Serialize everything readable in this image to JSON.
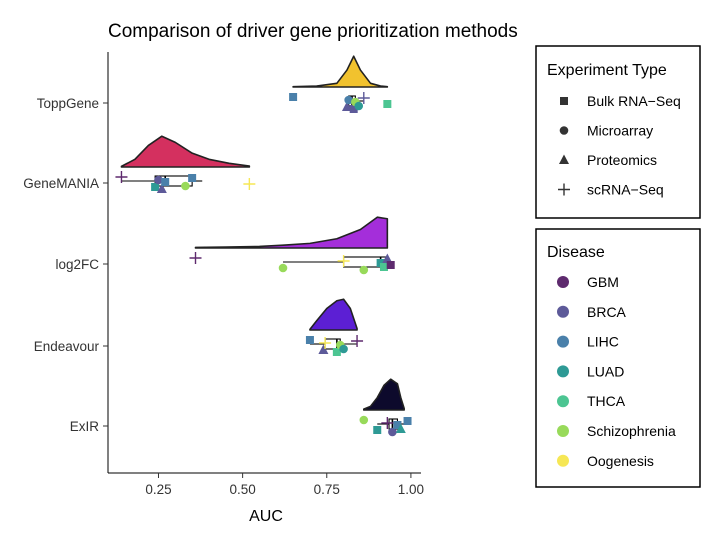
{
  "chart_data": {
    "type": "raincloud",
    "title": "Comparison of driver gene prioritization methods",
    "xlabel": "AUC",
    "ylabel": "",
    "xlim": [
      0.1,
      1.03
    ],
    "x_ticks": [
      0.25,
      0.5,
      0.75,
      1.0
    ],
    "x_tick_labels": [
      "0.25",
      "0.50",
      "0.75",
      "1.00"
    ],
    "grid": false,
    "legend_position": "right",
    "categories": [
      "ToppGene",
      "GeneMANIA",
      "log2FC",
      "Endeavour",
      "ExIR"
    ],
    "methods": [
      {
        "name": "ToppGene",
        "fill": "#F1C22E",
        "density": [
          [
            0.65,
            0.01
          ],
          [
            0.72,
            0.03
          ],
          [
            0.78,
            0.12
          ],
          [
            0.81,
            0.55
          ],
          [
            0.83,
            1.0
          ],
          [
            0.85,
            0.55
          ],
          [
            0.88,
            0.12
          ],
          [
            0.91,
            0.03
          ],
          [
            0.93,
            0.01
          ]
        ],
        "box": {
          "min": 0.81,
          "q1": 0.815,
          "median": 0.825,
          "q3": 0.835,
          "max": 0.86
        },
        "points": [
          {
            "x": 0.65,
            "disease": "LIHC",
            "exp": "Bulk RNA-Seq"
          },
          {
            "x": 0.81,
            "disease": "BRCA",
            "exp": "Proteomics"
          },
          {
            "x": 0.815,
            "disease": "LIHC",
            "exp": "Microarray"
          },
          {
            "x": 0.83,
            "disease": "BRCA",
            "exp": "Bulk RNA-Seq"
          },
          {
            "x": 0.835,
            "disease": "Schizophrenia",
            "exp": "Microarray"
          },
          {
            "x": 0.845,
            "disease": "LUAD",
            "exp": "Microarray"
          },
          {
            "x": 0.86,
            "disease": "BRCA",
            "exp": "scRNA-Seq"
          },
          {
            "x": 0.93,
            "disease": "THCA",
            "exp": "Bulk RNA-Seq"
          }
        ]
      },
      {
        "name": "GeneMANIA",
        "fill": "#D4305F",
        "density": [
          [
            0.14,
            0.02
          ],
          [
            0.18,
            0.25
          ],
          [
            0.22,
            0.7
          ],
          [
            0.26,
            1.0
          ],
          [
            0.3,
            0.8
          ],
          [
            0.35,
            0.45
          ],
          [
            0.4,
            0.25
          ],
          [
            0.46,
            0.12
          ],
          [
            0.52,
            0.03
          ]
        ],
        "box": {
          "min": 0.14,
          "q1": 0.24,
          "median": 0.27,
          "q3": 0.35,
          "max": 0.38
        },
        "points": [
          {
            "x": 0.14,
            "disease": "GBM",
            "exp": "scRNA-Seq"
          },
          {
            "x": 0.24,
            "disease": "LUAD",
            "exp": "Bulk RNA-Seq"
          },
          {
            "x": 0.25,
            "disease": "BRCA",
            "exp": "Microarray"
          },
          {
            "x": 0.26,
            "disease": "BRCA",
            "exp": "Proteomics"
          },
          {
            "x": 0.27,
            "disease": "LIHC",
            "exp": "Bulk RNA-Seq"
          },
          {
            "x": 0.33,
            "disease": "Schizophrenia",
            "exp": "Microarray"
          },
          {
            "x": 0.35,
            "disease": "LIHC",
            "exp": "Bulk RNA-Seq"
          },
          {
            "x": 0.52,
            "disease": "Oogenesis",
            "exp": "scRNA-Seq"
          }
        ]
      },
      {
        "name": "log2FC",
        "fill": "#A42EDA",
        "density": [
          [
            0.36,
            0.02
          ],
          [
            0.45,
            0.03
          ],
          [
            0.55,
            0.05
          ],
          [
            0.62,
            0.09
          ],
          [
            0.7,
            0.15
          ],
          [
            0.78,
            0.3
          ],
          [
            0.85,
            0.6
          ],
          [
            0.9,
            1.0
          ],
          [
            0.93,
            0.95
          ]
        ],
        "box": {
          "min": 0.62,
          "q1": 0.8,
          "median": 0.91,
          "q3": 0.93,
          "max": 0.94
        },
        "points": [
          {
            "x": 0.36,
            "disease": "GBM",
            "exp": "scRNA-Seq"
          },
          {
            "x": 0.62,
            "disease": "Schizophrenia",
            "exp": "Microarray"
          },
          {
            "x": 0.8,
            "disease": "Oogenesis",
            "exp": "scRNA-Seq"
          },
          {
            "x": 0.86,
            "disease": "Schizophrenia",
            "exp": "Microarray"
          },
          {
            "x": 0.91,
            "disease": "LUAD",
            "exp": "Bulk RNA-Seq"
          },
          {
            "x": 0.92,
            "disease": "THCA",
            "exp": "Bulk RNA-Seq"
          },
          {
            "x": 0.93,
            "disease": "BRCA",
            "exp": "Proteomics"
          },
          {
            "x": 0.94,
            "disease": "GBM",
            "exp": "Bulk RNA-Seq"
          }
        ]
      },
      {
        "name": "Endeavour",
        "fill": "#5C1FD4",
        "density": [
          [
            0.7,
            0.02
          ],
          [
            0.72,
            0.3
          ],
          [
            0.75,
            0.7
          ],
          [
            0.78,
            0.95
          ],
          [
            0.8,
            1.0
          ],
          [
            0.82,
            0.7
          ],
          [
            0.84,
            0.05
          ]
        ],
        "box": {
          "min": 0.7,
          "q1": 0.745,
          "median": 0.78,
          "q3": 0.79,
          "max": 0.84
        },
        "points": [
          {
            "x": 0.7,
            "disease": "LIHC",
            "exp": "Bulk RNA-Seq"
          },
          {
            "x": 0.74,
            "disease": "BRCA",
            "exp": "Proteomics"
          },
          {
            "x": 0.745,
            "disease": "Oogenesis",
            "exp": "scRNA-Seq"
          },
          {
            "x": 0.78,
            "disease": "THCA",
            "exp": "Bulk RNA-Seq"
          },
          {
            "x": 0.79,
            "disease": "Schizophrenia",
            "exp": "Microarray"
          },
          {
            "x": 0.8,
            "disease": "LUAD",
            "exp": "Microarray"
          },
          {
            "x": 0.84,
            "disease": "GBM",
            "exp": "scRNA-Seq"
          }
        ]
      },
      {
        "name": "ExIR",
        "fill": "#0D0A2C",
        "density": [
          [
            0.86,
            0.03
          ],
          [
            0.88,
            0.12
          ],
          [
            0.9,
            0.4
          ],
          [
            0.92,
            0.8
          ],
          [
            0.94,
            1.0
          ],
          [
            0.96,
            0.85
          ],
          [
            0.97,
            0.4
          ],
          [
            0.98,
            0.05
          ]
        ],
        "box": {
          "min": 0.9,
          "q1": 0.935,
          "median": 0.945,
          "q3": 0.96,
          "max": 0.99
        },
        "points": [
          {
            "x": 0.86,
            "disease": "Schizophrenia",
            "exp": "Microarray"
          },
          {
            "x": 0.9,
            "disease": "LUAD",
            "exp": "Bulk RNA-Seq"
          },
          {
            "x": 0.93,
            "disease": "GBM",
            "exp": "scRNA-Seq"
          },
          {
            "x": 0.945,
            "disease": "BRCA",
            "exp": "Microarray"
          },
          {
            "x": 0.96,
            "disease": "LIHC",
            "exp": "Bulk RNA-Seq"
          },
          {
            "x": 0.97,
            "disease": "LUAD",
            "exp": "Proteomics"
          },
          {
            "x": 0.99,
            "disease": "LIHC",
            "exp": "Bulk RNA-Seq"
          }
        ]
      }
    ],
    "legend_experiment": {
      "title": "Experiment Type",
      "items": [
        {
          "label": "Bulk RNA−Seq",
          "shape": "square"
        },
        {
          "label": "Microarray",
          "shape": "circle"
        },
        {
          "label": "Proteomics",
          "shape": "triangle"
        },
        {
          "label": "scRNA−Seq",
          "shape": "plus"
        }
      ]
    },
    "legend_disease": {
      "title": "Disease",
      "items": [
        {
          "label": "GBM",
          "color": "#5E2A6E"
        },
        {
          "label": "BRCA",
          "color": "#5D5A99"
        },
        {
          "label": "LIHC",
          "color": "#4A80AA"
        },
        {
          "label": "LUAD",
          "color": "#2E9A95"
        },
        {
          "label": "THCA",
          "color": "#4CC592"
        },
        {
          "label": "Schizophrenia",
          "color": "#98DA5A"
        },
        {
          "label": "Oogenesis",
          "color": "#F6E755"
        }
      ]
    }
  }
}
